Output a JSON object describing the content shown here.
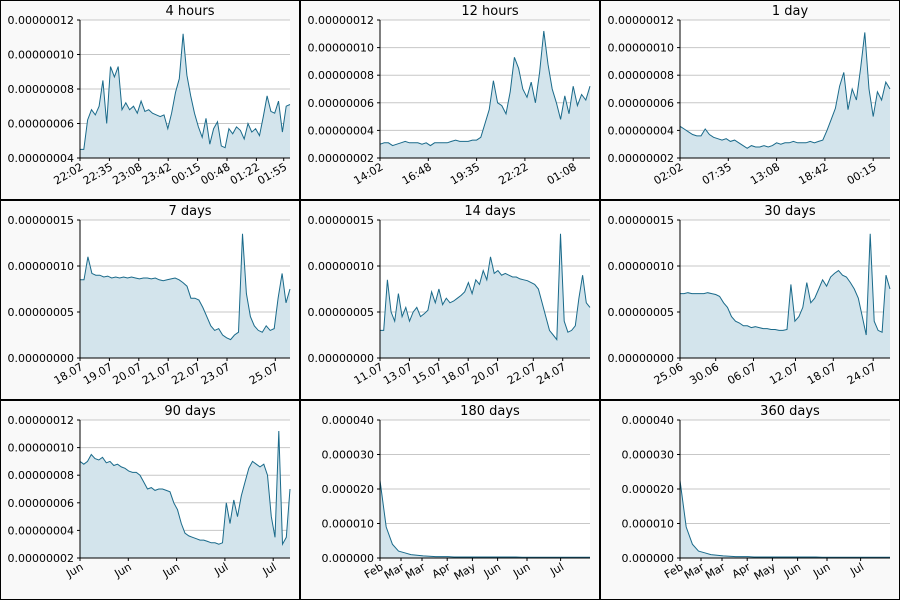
{
  "chart_data": [
    {
      "type": "area",
      "title": "4 hours",
      "ylim": [
        4e-08,
        1.2e-07
      ],
      "yticks": [
        "0.00000004",
        "0.00000006",
        "0.00000008",
        "0.00000010",
        "0.00000012"
      ],
      "xticks": [
        "22:02",
        "22:35",
        "23:08",
        "23:42",
        "00:15",
        "00:48",
        "01:22",
        "01:55"
      ],
      "xtick_pos": [
        0,
        0.14,
        0.28,
        0.42,
        0.56,
        0.7,
        0.84,
        0.97
      ],
      "values": [
        4.5e-08,
        4.5e-08,
        6.2e-08,
        6.8e-08,
        6.5e-08,
        7e-08,
        8.5e-08,
        6e-08,
        9.3e-08,
        8.7e-08,
        9.3e-08,
        6.8e-08,
        7.2e-08,
        6.8e-08,
        7e-08,
        6.6e-08,
        7.3e-08,
        6.7e-08,
        6.8e-08,
        6.6e-08,
        6.5e-08,
        6.4e-08,
        6.5e-08,
        5.7e-08,
        6.6e-08,
        7.8e-08,
        8.6e-08,
        1.12e-07,
        8.8e-08,
        7.6e-08,
        6.6e-08,
        5.8e-08,
        5.2e-08,
        6.3e-08,
        4.8e-08,
        5.7e-08,
        6.1e-08,
        4.7e-08,
        4.6e-08,
        5.7e-08,
        5.4e-08,
        5.8e-08,
        5.6e-08,
        5.1e-08,
        6e-08,
        5.5e-08,
        5.7e-08,
        5.3e-08,
        6.4e-08,
        7.6e-08,
        6.7e-08,
        6.6e-08,
        7.3e-08,
        5.5e-08,
        7e-08,
        7.1e-08
      ]
    },
    {
      "type": "area",
      "title": "12 hours",
      "ylim": [
        2e-08,
        1.2e-07
      ],
      "yticks": [
        "0.00000002",
        "0.00000004",
        "0.00000006",
        "0.00000008",
        "0.00000010",
        "0.00000012"
      ],
      "xticks": [
        "14:02",
        "16:48",
        "19:35",
        "22:22",
        "01:08"
      ],
      "xtick_pos": [
        0,
        0.23,
        0.46,
        0.69,
        0.92
      ],
      "values": [
        3e-08,
        3.1e-08,
        3.1e-08,
        2.9e-08,
        3e-08,
        3.1e-08,
        3.2e-08,
        3.1e-08,
        3.1e-08,
        3.1e-08,
        3e-08,
        3.1e-08,
        2.9e-08,
        3.1e-08,
        3.1e-08,
        3.1e-08,
        3.1e-08,
        3.2e-08,
        3.3e-08,
        3.2e-08,
        3.2e-08,
        3.2e-08,
        3.3e-08,
        3.3e-08,
        3.5e-08,
        4.5e-08,
        5.5e-08,
        7.6e-08,
        6e-08,
        5.8e-08,
        5.2e-08,
        6.8e-08,
        9.3e-08,
        8.5e-08,
        7e-08,
        6.4e-08,
        7.5e-08,
        6e-08,
        8.2e-08,
        1.12e-07,
        8.8e-08,
        7e-08,
        6e-08,
        4.8e-08,
        6.5e-08,
        5.2e-08,
        7.2e-08,
        5.8e-08,
        6.6e-08,
        6.2e-08,
        7.2e-08
      ]
    },
    {
      "type": "area",
      "title": "1 day",
      "ylim": [
        2e-08,
        1.2e-07
      ],
      "yticks": [
        "0.00000002",
        "0.00000004",
        "0.00000006",
        "0.00000008",
        "0.00000010",
        "0.00000012"
      ],
      "xticks": [
        "02:02",
        "07:35",
        "13:08",
        "18:42",
        "00:15"
      ],
      "xtick_pos": [
        0,
        0.23,
        0.46,
        0.69,
        0.92
      ],
      "values": [
        4.3e-08,
        4.1e-08,
        3.9e-08,
        3.7e-08,
        3.6e-08,
        3.6e-08,
        4.1e-08,
        3.7e-08,
        3.5e-08,
        3.4e-08,
        3.3e-08,
        3.4e-08,
        3.2e-08,
        3.3e-08,
        3.1e-08,
        2.9e-08,
        2.7e-08,
        2.9e-08,
        2.8e-08,
        2.8e-08,
        2.9e-08,
        2.8e-08,
        2.9e-08,
        3.1e-08,
        3e-08,
        3.1e-08,
        3.1e-08,
        3.2e-08,
        3.1e-08,
        3.1e-08,
        3.1e-08,
        3.2e-08,
        3.1e-08,
        3.2e-08,
        3.3e-08,
        4e-08,
        4.8e-08,
        5.6e-08,
        7.2e-08,
        8.2e-08,
        5.5e-08,
        7e-08,
        6.2e-08,
        8.5e-08,
        1.11e-07,
        7e-08,
        5e-08,
        6.8e-08,
        6.2e-08,
        7.5e-08,
        7e-08
      ]
    },
    {
      "type": "area",
      "title": "7 days",
      "ylim": [
        0,
        1.5e-07
      ],
      "yticks": [
        "0.00000000",
        "0.00000005",
        "0.00000010",
        "0.00000015"
      ],
      "xticks": [
        "18.07",
        "19.07",
        "20.07",
        "21.07",
        "22.07",
        "23.07",
        "25.07"
      ],
      "xtick_pos": [
        0,
        0.14,
        0.28,
        0.42,
        0.56,
        0.7,
        0.93
      ],
      "values": [
        8.5e-08,
        8.5e-08,
        1.1e-07,
        9.2e-08,
        9e-08,
        9e-08,
        8.8e-08,
        8.9e-08,
        8.7e-08,
        8.8e-08,
        8.7e-08,
        8.8e-08,
        8.7e-08,
        8.8e-08,
        8.7e-08,
        8.6e-08,
        8.7e-08,
        8.7e-08,
        8.6e-08,
        8.7e-08,
        8.5e-08,
        8.4e-08,
        8.5e-08,
        8.6e-08,
        8.7e-08,
        8.5e-08,
        8.2e-08,
        7.8e-08,
        6.5e-08,
        6.5e-08,
        6.3e-08,
        5.5e-08,
        4.5e-08,
        3.5e-08,
        3e-08,
        3.2e-08,
        2.5e-08,
        2.2e-08,
        2e-08,
        2.5e-08,
        2.8e-08,
        1.35e-07,
        7e-08,
        4.5e-08,
        3.5e-08,
        3e-08,
        2.8e-08,
        3.5e-08,
        3e-08,
        3.2e-08,
        6.5e-08,
        9.2e-08,
        6e-08,
        7.5e-08
      ]
    },
    {
      "type": "area",
      "title": "14 days",
      "ylim": [
        0,
        1.5e-07
      ],
      "yticks": [
        "0.00000000",
        "0.00000005",
        "0.00000010",
        "0.00000015"
      ],
      "xticks": [
        "11.07",
        "13.07",
        "15.07",
        "18.07",
        "20.07",
        "22.07",
        "24.07"
      ],
      "xtick_pos": [
        0,
        0.14,
        0.28,
        0.42,
        0.56,
        0.73,
        0.87
      ],
      "values": [
        3e-08,
        3e-08,
        8.5e-08,
        5e-08,
        4e-08,
        7e-08,
        4.5e-08,
        5.5e-08,
        4e-08,
        5e-08,
        5.5e-08,
        4.5e-08,
        4.8e-08,
        5.2e-08,
        7.2e-08,
        6e-08,
        7.5e-08,
        5.8e-08,
        6.5e-08,
        6e-08,
        6.2e-08,
        6.5e-08,
        6.8e-08,
        7.2e-08,
        8.2e-08,
        7e-08,
        8.5e-08,
        8e-08,
        9.5e-08,
        8.5e-08,
        1.1e-07,
        9.2e-08,
        9.5e-08,
        9e-08,
        9.2e-08,
        9e-08,
        8.8e-08,
        8.8e-08,
        8.6e-08,
        8.5e-08,
        8.4e-08,
        8.2e-08,
        8e-08,
        7.5e-08,
        6e-08,
        4.5e-08,
        3e-08,
        2.5e-08,
        2e-08,
        1.35e-07,
        4e-08,
        2.8e-08,
        3e-08,
        3.5e-08,
        6.5e-08,
        9e-08,
        6e-08,
        5.5e-08
      ]
    },
    {
      "type": "area",
      "title": "30 days",
      "ylim": [
        0,
        1.5e-07
      ],
      "yticks": [
        "0.00000000",
        "0.00000005",
        "0.00000010",
        "0.00000015"
      ],
      "xticks": [
        "25.06",
        "30.06",
        "06.07",
        "12.07",
        "18.07",
        "24.07"
      ],
      "xtick_pos": [
        0,
        0.17,
        0.35,
        0.55,
        0.73,
        0.92
      ],
      "values": [
        7e-08,
        7e-08,
        7.1e-08,
        7e-08,
        7e-08,
        7e-08,
        7e-08,
        7.1e-08,
        7e-08,
        6.9e-08,
        6.7e-08,
        6e-08,
        5.5e-08,
        4.5e-08,
        4e-08,
        3.8e-08,
        3.5e-08,
        3.5e-08,
        3.3e-08,
        3.4e-08,
        3.3e-08,
        3.2e-08,
        3.2e-08,
        3.1e-08,
        3.1e-08,
        3e-08,
        3e-08,
        3.1e-08,
        8e-08,
        4e-08,
        4.5e-08,
        5.5e-08,
        8.2e-08,
        6e-08,
        6.5e-08,
        7.5e-08,
        8.5e-08,
        7.8e-08,
        8.8e-08,
        9.2e-08,
        9.5e-08,
        9e-08,
        8.8e-08,
        8.2e-08,
        7.5e-08,
        6.5e-08,
        4.5e-08,
        2.5e-08,
        1.35e-07,
        4e-08,
        3e-08,
        2.8e-08,
        9e-08,
        7.5e-08
      ]
    },
    {
      "type": "area",
      "title": "90 days",
      "ylim": [
        2e-08,
        1.2e-07
      ],
      "yticks": [
        "0.00000002",
        "0.00000004",
        "0.00000006",
        "0.00000008",
        "0.00000010",
        "0.00000012"
      ],
      "xticks": [
        "Jun",
        "Jun",
        "Jun",
        "Jul",
        "Jul"
      ],
      "xtick_pos": [
        0,
        0.23,
        0.46,
        0.69,
        0.92
      ],
      "values": [
        9e-08,
        8.8e-08,
        9e-08,
        9.5e-08,
        9.2e-08,
        9.1e-08,
        9.3e-08,
        8.9e-08,
        9e-08,
        8.7e-08,
        8.8e-08,
        8.6e-08,
        8.5e-08,
        8.3e-08,
        8.2e-08,
        8.2e-08,
        8e-08,
        7.5e-08,
        7e-08,
        7.1e-08,
        6.9e-08,
        7e-08,
        7e-08,
        6.9e-08,
        6.8e-08,
        6e-08,
        5.5e-08,
        4.5e-08,
        3.8e-08,
        3.6e-08,
        3.5e-08,
        3.4e-08,
        3.3e-08,
        3.3e-08,
        3.2e-08,
        3.1e-08,
        3.1e-08,
        3e-08,
        3.1e-08,
        6e-08,
        4.5e-08,
        6.2e-08,
        5e-08,
        6.5e-08,
        7.5e-08,
        8.5e-08,
        9e-08,
        8.8e-08,
        8.6e-08,
        8.8e-08,
        8e-08,
        5e-08,
        3.5e-08,
        1.12e-07,
        3e-08,
        3.5e-08,
        7e-08
      ]
    },
    {
      "type": "area",
      "title": "180 days",
      "ylim": [
        0,
        4e-05
      ],
      "yticks": [
        "0.000000",
        "0.000010",
        "0.000020",
        "0.000030",
        "0.000040"
      ],
      "xticks": [
        "Feb",
        "Mar",
        "Mar",
        "Apr",
        "May",
        "Jun",
        "Jun",
        "Jul"
      ],
      "xtick_pos": [
        0,
        0.1,
        0.2,
        0.32,
        0.44,
        0.56,
        0.7,
        0.86
      ],
      "values": [
        2.25e-05,
        9e-06,
        4e-06,
        2e-06,
        1.5e-06,
        1e-06,
        8e-07,
        6e-07,
        5e-07,
        4e-07,
        4e-07,
        4e-07,
        3e-07,
        3e-07,
        3e-07,
        3e-07,
        3e-07,
        3e-07,
        3e-07,
        3e-07,
        3e-07,
        3e-07,
        3e-07,
        2e-07,
        2e-07,
        2e-07,
        2e-07,
        2e-07,
        2e-07,
        2e-07,
        2e-07,
        2e-07,
        2e-07,
        2e-07,
        2e-07
      ]
    },
    {
      "type": "area",
      "title": "360 days",
      "ylim": [
        0,
        4e-05
      ],
      "yticks": [
        "0.000000",
        "0.000010",
        "0.000020",
        "0.000030",
        "0.000040"
      ],
      "xticks": [
        "Feb",
        "Mar",
        "Mar",
        "Apr",
        "May",
        "Jun",
        "Jun",
        "Jul"
      ],
      "xtick_pos": [
        0,
        0.1,
        0.2,
        0.32,
        0.44,
        0.56,
        0.7,
        0.86
      ],
      "values": [
        2.25e-05,
        9e-06,
        4e-06,
        2e-06,
        1.5e-06,
        1e-06,
        8e-07,
        6e-07,
        5e-07,
        4e-07,
        4e-07,
        4e-07,
        3e-07,
        3e-07,
        3e-07,
        3e-07,
        3e-07,
        3e-07,
        3e-07,
        3e-07,
        3e-07,
        3e-07,
        3e-07,
        2e-07,
        2e-07,
        2e-07,
        2e-07,
        2e-07,
        2e-07,
        2e-07,
        2e-07,
        2e-07,
        2e-07,
        2e-07,
        2e-07
      ]
    }
  ],
  "colors": {
    "line": "#1a6a8a",
    "fill": "#d3e4ec",
    "grid": "#c7c7c7",
    "axis": "#000000",
    "panel_bg": "#f9f9f9",
    "plot_bg": "#ffffff"
  }
}
